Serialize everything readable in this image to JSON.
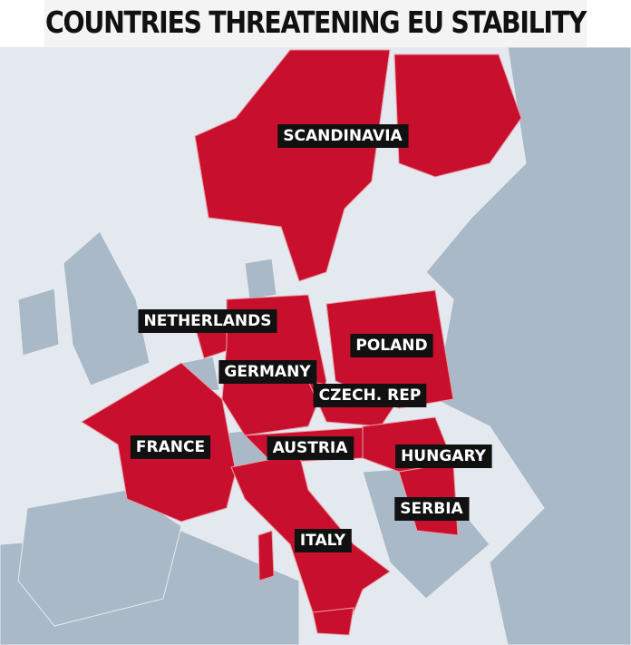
{
  "title": "COUNTRIES THREATENING EU STABILITY",
  "labels": [
    "SCANDINAVIA",
    "NETHERLANDS",
    "GERMANY",
    "POLAND",
    "CZECH. REP",
    "FRANCE",
    "AUSTRIA",
    "HUNGARY",
    "SERBIA",
    "ITALY"
  ]
}
